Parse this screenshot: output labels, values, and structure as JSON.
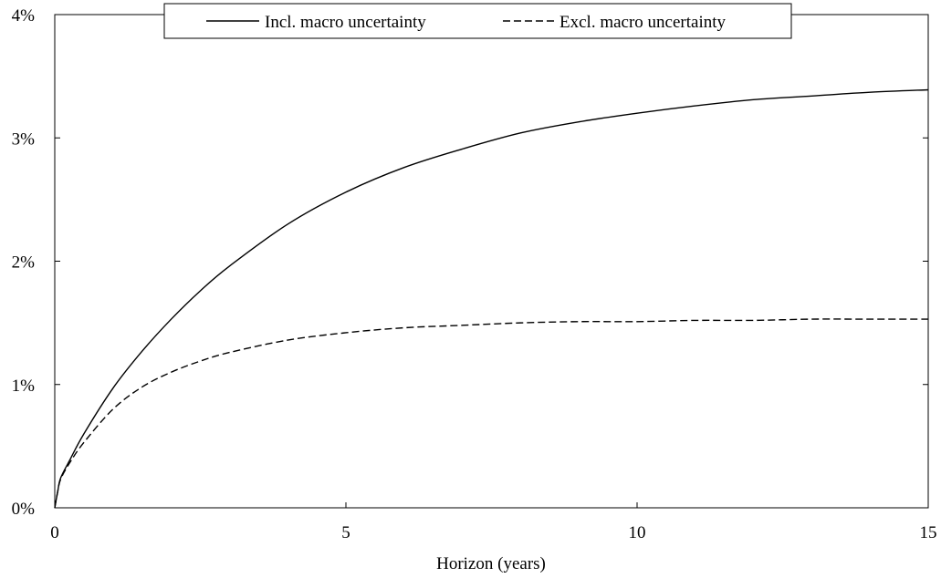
{
  "chart_data": {
    "type": "line",
    "title": "",
    "xlabel": "Horizon (years)",
    "ylabel": "",
    "xlim": [
      0,
      15
    ],
    "ylim": [
      0,
      4
    ],
    "x_ticks": [
      0,
      5,
      10,
      15
    ],
    "x_tick_labels": [
      "0",
      "5",
      "10",
      "15"
    ],
    "y_ticks": [
      0,
      1,
      2,
      3,
      4
    ],
    "y_tick_labels": [
      "0%",
      "1%",
      "2%",
      "3%",
      "4%"
    ],
    "grid": false,
    "legend_position": "top-center",
    "series": [
      {
        "name": "Incl. macro uncertainty",
        "style": "solid",
        "color": "#000000",
        "x": [
          0,
          0.05,
          0.1,
          0.25,
          0.5,
          1,
          1.5,
          2,
          2.5,
          3,
          4,
          5,
          6,
          7,
          8,
          9,
          10,
          11,
          12,
          13,
          14,
          15
        ],
        "y": [
          0,
          0.13,
          0.24,
          0.38,
          0.6,
          0.97,
          1.27,
          1.53,
          1.76,
          1.96,
          2.3,
          2.56,
          2.76,
          2.91,
          3.04,
          3.13,
          3.2,
          3.26,
          3.31,
          3.34,
          3.37,
          3.39
        ]
      },
      {
        "name": "Excl. macro uncertainty",
        "style": "dashed",
        "color": "#000000",
        "x": [
          0,
          0.05,
          0.1,
          0.25,
          0.5,
          1,
          1.5,
          2,
          2.5,
          3,
          4,
          5,
          6,
          7,
          8,
          9,
          10,
          11,
          12,
          13,
          14,
          15
        ],
        "y": [
          0,
          0.13,
          0.23,
          0.36,
          0.53,
          0.8,
          0.98,
          1.1,
          1.19,
          1.26,
          1.36,
          1.42,
          1.46,
          1.48,
          1.5,
          1.51,
          1.51,
          1.52,
          1.52,
          1.53,
          1.53,
          1.53
        ]
      }
    ]
  }
}
